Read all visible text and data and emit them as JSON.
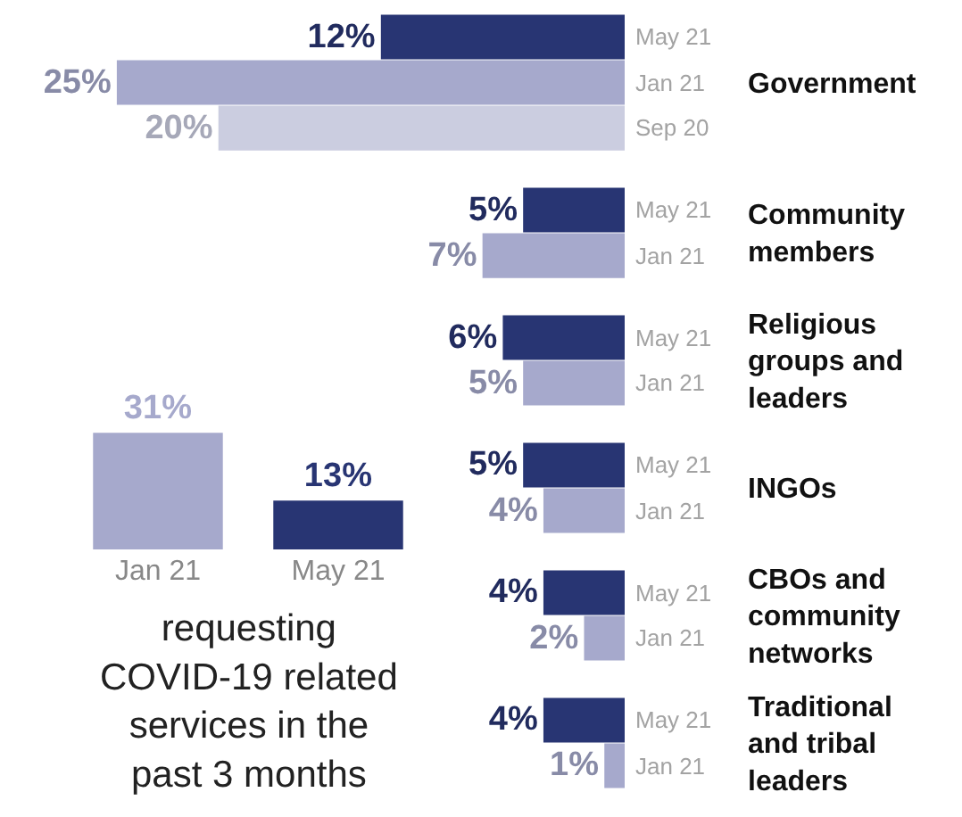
{
  "chart_data": [
    {
      "type": "bar",
      "categories": [
        "Jan 21",
        "May 21"
      ],
      "values": [
        31,
        13
      ],
      "colors": [
        "#a6a9cc",
        "#283573"
      ],
      "value_labels": [
        "31%",
        "13%"
      ],
      "tick_labels": "x",
      "grid": false,
      "legend": false,
      "annotations": [
        "requesting COVID-19 related services in the past 3 months"
      ]
    },
    {
      "type": "bar",
      "orientation": "horizontal",
      "categories": [
        "Government",
        "Community members",
        "Religious groups and leaders",
        "INGOs",
        "CBOs and community networks",
        "Traditional and tribal leaders"
      ],
      "tick_labels": "y",
      "grid": false,
      "legend": false,
      "series": [
        {
          "name": "May 21",
          "color": "#283573",
          "values": [
            12,
            5,
            6,
            5,
            4,
            4
          ],
          "value_labels": [
            "12%",
            "5%",
            "6%",
            "5%",
            "4%",
            "4%"
          ]
        },
        {
          "name": "Jan 21",
          "color": "#a6a9cc",
          "values": [
            25,
            7,
            5,
            4,
            2,
            1
          ],
          "value_labels": [
            "25%",
            "7%",
            "5%",
            "4%",
            "2%",
            "1%"
          ]
        },
        {
          "name": "Sep 20",
          "color": "#cbcde0",
          "values": [
            20,
            null,
            null,
            null,
            null,
            null
          ],
          "value_labels": [
            "20%",
            null,
            null,
            null,
            null,
            null
          ]
        }
      ]
    }
  ]
}
